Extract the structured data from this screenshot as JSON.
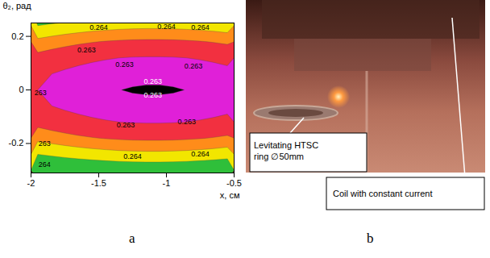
{
  "chart_data": {
    "type": "contour",
    "x_label": "x, см",
    "y_label": "θ₂, рад",
    "xlim": [
      -2,
      -0.5
    ],
    "ylim": [
      -0.31,
      0.25
    ],
    "xticks": [
      -2,
      -1.5,
      -1,
      -0.5
    ],
    "yticks": [
      -0.2,
      0,
      0.2
    ],
    "cells_xlim": [
      -2,
      -0.5
    ],
    "cells_ylim": [
      -0.33,
      0.33
    ],
    "cells": [
      [
        0.264152,
        0.264108,
        0.264069,
        0.264036,
        0.264008,
        0.263986,
        0.263969,
        0.263958,
        0.263953,
        0.263953,
        0.263958,
        0.263969,
        0.263986,
        0.264008,
        0.264036
      ],
      [
        0.263737,
        0.263693,
        0.263654,
        0.263621,
        0.263593,
        0.263571,
        0.263554,
        0.263543,
        0.263538,
        0.263538,
        0.263543,
        0.263554,
        0.263571,
        0.263593,
        0.263621
      ],
      [
        0.263415,
        0.263371,
        0.263332,
        0.263299,
        0.263271,
        0.263249,
        0.263232,
        0.263221,
        0.263216,
        0.263216,
        0.263221,
        0.263232,
        0.263249,
        0.263271,
        0.263299
      ],
      [
        0.263184,
        0.26314,
        0.263101,
        0.263068,
        0.26304,
        0.263018,
        0.263001,
        0.26299,
        0.262985,
        0.262985,
        0.26299,
        0.263001,
        0.263018,
        0.26304,
        0.263068
      ],
      [
        0.263046,
        0.263002,
        0.262963,
        0.26293,
        0.262902,
        0.26288,
        0.262863,
        0.262852,
        0.262847,
        0.262847,
        0.262852,
        0.262863,
        0.26288,
        0.262902,
        0.26293
      ],
      [
        0.263,
        0.262956,
        0.262917,
        0.262884,
        0.262856,
        0.262834,
        0.262817,
        0.262806,
        0.262801,
        0.262801,
        0.262806,
        0.262817,
        0.262834,
        0.262856,
        0.262884
      ],
      [
        0.263046,
        0.263002,
        0.262963,
        0.26293,
        0.262902,
        0.26288,
        0.262863,
        0.262852,
        0.262847,
        0.262847,
        0.262852,
        0.262863,
        0.26288,
        0.262902,
        0.26293
      ],
      [
        0.263184,
        0.26314,
        0.263101,
        0.263068,
        0.26304,
        0.263018,
        0.263001,
        0.26299,
        0.262985,
        0.262985,
        0.26299,
        0.263001,
        0.263018,
        0.26304,
        0.263068
      ],
      [
        0.263415,
        0.263371,
        0.263332,
        0.263299,
        0.263271,
        0.263249,
        0.263232,
        0.263221,
        0.263216,
        0.263216,
        0.263221,
        0.263232,
        0.263249,
        0.263271,
        0.263299
      ],
      [
        0.263737,
        0.263693,
        0.263654,
        0.263621,
        0.263593,
        0.263571,
        0.263554,
        0.263543,
        0.263538,
        0.263538,
        0.263543,
        0.263554,
        0.263571,
        0.263593,
        0.263621
      ],
      [
        0.264152,
        0.264108,
        0.264069,
        0.264036,
        0.264008,
        0.263986,
        0.263969,
        0.263958,
        0.263953,
        0.263953,
        0.263958,
        0.263969,
        0.263986,
        0.264008,
        0.264036
      ]
    ],
    "levels": [
      0.262815,
      0.263,
      0.26326,
      0.26348,
      0.26374
    ],
    "colors": [
      "#000000",
      "#e020d8",
      "#f23040",
      "#ff8c1a",
      "#f2e600",
      "#2fbf3a"
    ],
    "annotations": [
      {
        "text": "0.264",
        "x": -1.5,
        "y": 0.232,
        "color": "#000000"
      },
      {
        "text": "0.264",
        "x": -1.0,
        "y": 0.236,
        "color": "#000000"
      },
      {
        "text": "0.264",
        "x": -0.75,
        "y": 0.232,
        "color": "#000000"
      },
      {
        "text": "0.263",
        "x": -1.59,
        "y": 0.15,
        "color": "#000000"
      },
      {
        "text": "0.263",
        "x": -1.31,
        "y": 0.095,
        "color": "#000000"
      },
      {
        "text": "0.263",
        "x": -0.8,
        "y": 0.09,
        "color": "#000000"
      },
      {
        "text": "0.263",
        "x": -1.1,
        "y": 0.03,
        "color": "#ffffff"
      },
      {
        "text": "0.263",
        "x": -1.1,
        "y": -0.02,
        "color": "#ffffff"
      },
      {
        "text": "263",
        "x": -1.93,
        "y": -0.01,
        "color": "#000000"
      },
      {
        "text": "0.263",
        "x": -1.3,
        "y": -0.13,
        "color": "#000000"
      },
      {
        "text": "0.263",
        "x": -0.85,
        "y": -0.12,
        "color": "#000000"
      },
      {
        "text": "263",
        "x": -1.9,
        "y": -0.2,
        "color": "#000000"
      },
      {
        "text": "264",
        "x": -1.9,
        "y": -0.28,
        "color": "#000000"
      },
      {
        "text": "0.264",
        "x": -1.25,
        "y": -0.25,
        "color": "#000000"
      },
      {
        "text": "0.264",
        "x": -0.75,
        "y": -0.24,
        "color": "#000000"
      }
    ]
  },
  "panel_labels": [
    "a",
    "b"
  ],
  "photo": {
    "callouts": [
      "Levitating HTSC ring ∅50mm",
      "Coil with constant current"
    ]
  }
}
